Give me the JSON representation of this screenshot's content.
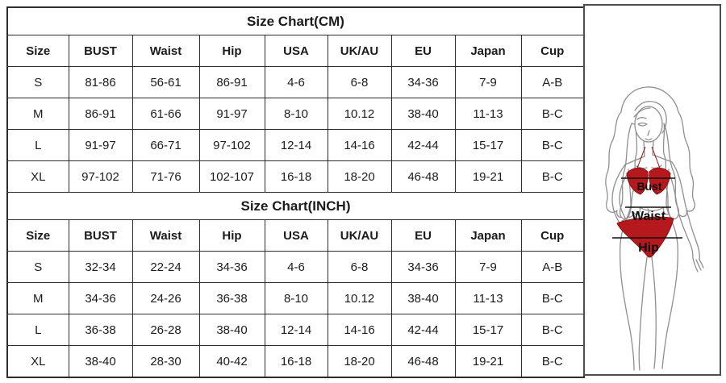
{
  "colors": {
    "table_border": "#2d2d2d",
    "panel_border": "#4e4e4e",
    "text": "#1b1b1b",
    "bikini_red": "#b5191d",
    "figure_line": "#8f8f8f"
  },
  "tables": [
    {
      "title": "Size Chart(CM)",
      "columns": [
        "Size",
        "BUST",
        "Waist",
        "Hip",
        "USA",
        "UK/AU",
        "EU",
        "Japan",
        "Cup"
      ],
      "rows": [
        [
          "S",
          "81-86",
          "56-61",
          "86-91",
          "4-6",
          "6-8",
          "34-36",
          "7-9",
          "A-B"
        ],
        [
          "M",
          "86-91",
          "61-66",
          "91-97",
          "8-10",
          "10.12",
          "38-40",
          "11-13",
          "B-C"
        ],
        [
          "L",
          "91-97",
          "66-71",
          "97-102",
          "12-14",
          "14-16",
          "42-44",
          "15-17",
          "B-C"
        ],
        [
          "XL",
          "97-102",
          "71-76",
          "102-107",
          "16-18",
          "18-20",
          "46-48",
          "19-21",
          "B-C"
        ]
      ]
    },
    {
      "title": "Size Chart(INCH)",
      "columns": [
        "Size",
        "BUST",
        "Waist",
        "Hip",
        "USA",
        "UK/AU",
        "EU",
        "Japan",
        "Cup"
      ],
      "rows": [
        [
          "S",
          "32-34",
          "22-24",
          "34-36",
          "4-6",
          "6-8",
          "34-36",
          "7-9",
          "A-B"
        ],
        [
          "M",
          "34-36",
          "24-26",
          "36-38",
          "8-10",
          "10.12",
          "38-40",
          "11-13",
          "B-C"
        ],
        [
          "L",
          "36-38",
          "26-28",
          "38-40",
          "12-14",
          "14-16",
          "42-44",
          "15-17",
          "B-C"
        ],
        [
          "XL",
          "38-40",
          "28-30",
          "40-42",
          "16-18",
          "18-20",
          "46-48",
          "19-21",
          "B-C"
        ]
      ]
    }
  ],
  "figure": {
    "labels": {
      "bust": "Bust",
      "waist": "Waist",
      "hip": "Hip"
    }
  }
}
